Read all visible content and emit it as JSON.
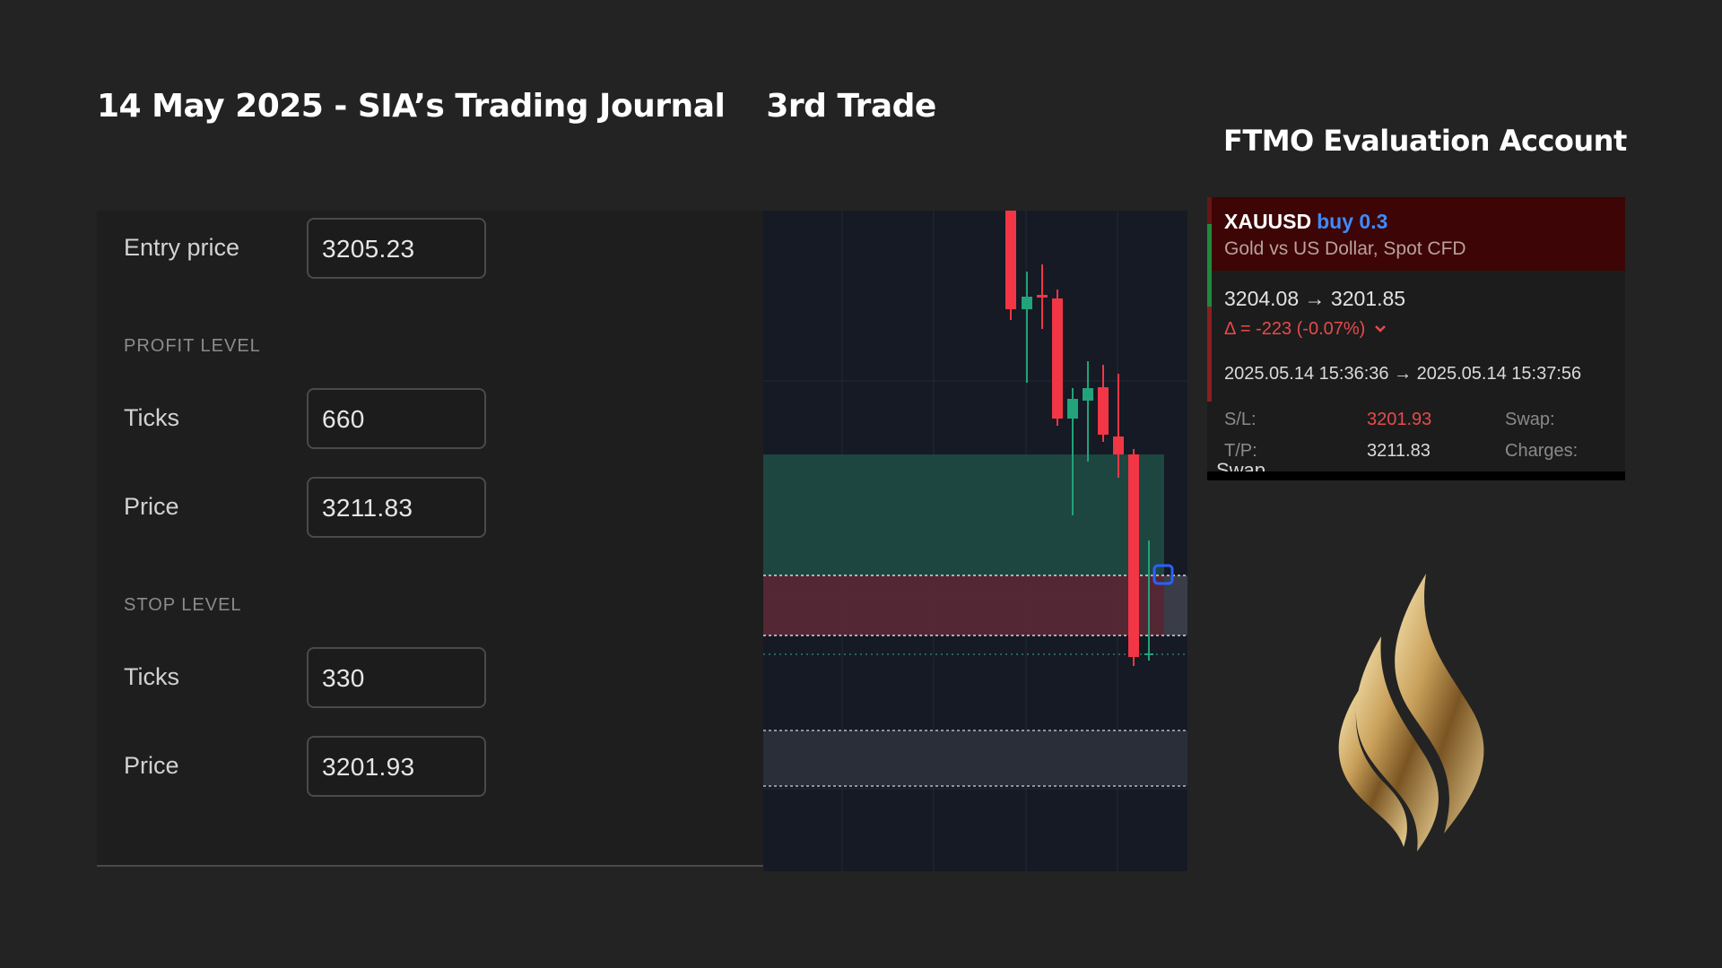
{
  "header": {
    "title": "14 May 2025 - SIA’s Trading Journal",
    "trade_label": "3rd Trade",
    "account_title": "FTMO Evaluation Account"
  },
  "settings": {
    "entry_label": "Entry price",
    "entry_value": "3205.23",
    "profit_section": "PROFIT LEVEL",
    "profit_ticks_label": "Ticks",
    "profit_ticks_value": "660",
    "profit_price_label": "Price",
    "profit_price_value": "3211.83",
    "stop_section": "STOP LEVEL",
    "stop_ticks_label": "Ticks",
    "stop_ticks_value": "330",
    "stop_price_label": "Price",
    "stop_price_value": "3201.93"
  },
  "chart": {
    "colors": {
      "up": "#22a37a",
      "down": "#f23645",
      "profit_zone": "#1e4b44",
      "stop_zone": "#5a2a36"
    }
  },
  "trade_card": {
    "symbol": "XAUUSD",
    "side": "buy 0.3",
    "description": "Gold vs US Dollar, Spot CFD",
    "price_change": "3204.08 → 3201.85",
    "delta": "Δ = -223 (-0.07%)",
    "delta_icon": "chevron-down-icon",
    "time_range": "2025.05.14 15:36:36 → 2025.05.14 15:37:56",
    "sl_label": "S/L:",
    "sl_value": "3201.93",
    "swap_label": "Swap:",
    "tp_label": "T/P:",
    "tp_value": "3211.83",
    "charges_label": "Charges:",
    "swap_cut": "Swap"
  },
  "logo": {
    "icon": "gold-flame-logo"
  }
}
